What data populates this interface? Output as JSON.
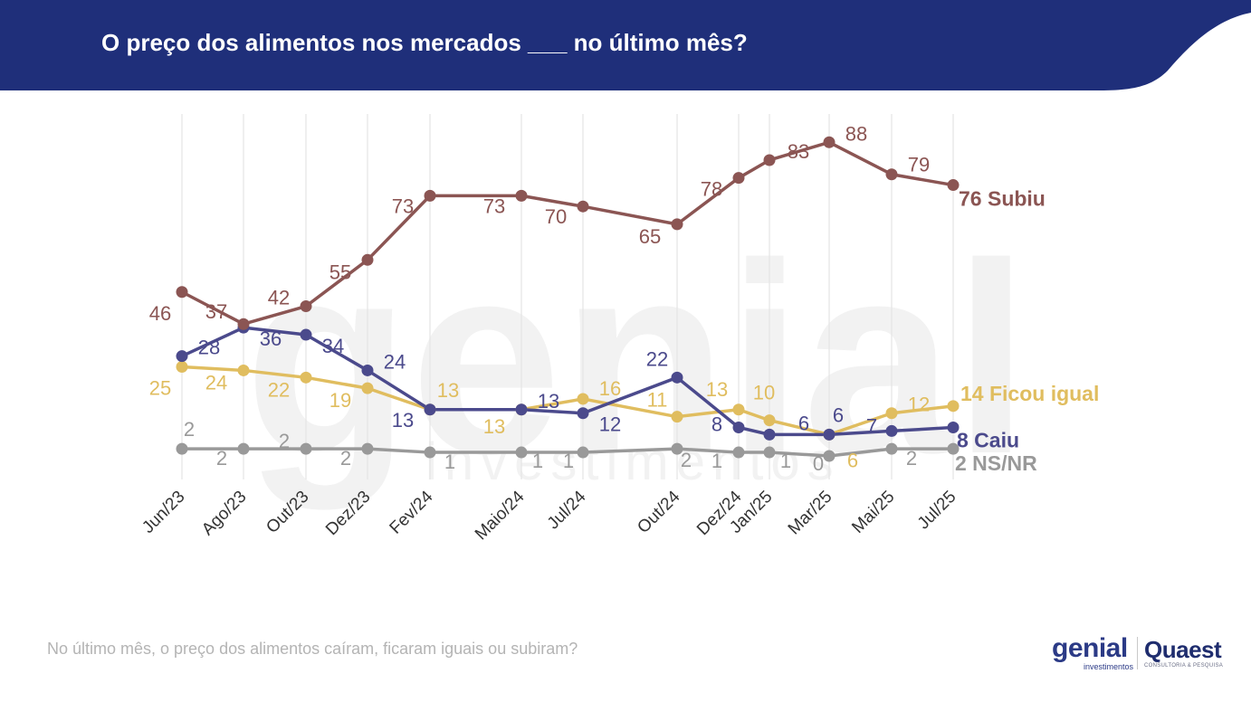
{
  "header": {
    "title": "O preço dos alimentos nos mercados ___ no último mês?",
    "background_color": "#1f2f7a"
  },
  "footer": {
    "question": "No último mês, o preço dos alimentos caíram, ficaram iguais ou subiram?"
  },
  "logos": {
    "genial_word": "genial",
    "genial_sub": "investimentos",
    "quaest_word": "Quaest",
    "quaest_sub": "CONSULTORIA & PESQUISA",
    "watermark_word": "genial",
    "watermark_sub": "investimentos"
  },
  "chart_data": {
    "type": "line",
    "title": "",
    "xlabel": "",
    "ylabel": "",
    "ylim": [
      0,
      100
    ],
    "grid": "vertical lines at each survey date",
    "x": [
      "Jun/23",
      "Ago/23",
      "Out/23",
      "Dez/23",
      "Fev/24",
      "Maio/24",
      "Jul/24",
      "Out/24",
      "Dez/24",
      "Jan/25",
      "Mar/25",
      "Mai/25",
      "Jul/25"
    ],
    "series": [
      {
        "name": "Subiu",
        "color": "#8b5553",
        "values": [
          46,
          37,
          42,
          55,
          73,
          73,
          70,
          65,
          78,
          83,
          88,
          79,
          76
        ],
        "end_label": "76 Subiu"
      },
      {
        "name": "Caiu",
        "color": "#4b4a8c",
        "values": [
          28,
          36,
          34,
          24,
          13,
          13,
          12,
          22,
          8,
          6,
          6,
          7,
          8
        ],
        "end_label": "8 Caiu"
      },
      {
        "name": "Ficou igual",
        "color": "#e0bd5f",
        "values": [
          25,
          24,
          22,
          19,
          13,
          13,
          16,
          11,
          13,
          10,
          6,
          12,
          14
        ],
        "end_label": "14 Ficou igual"
      },
      {
        "name": "NS/NR",
        "color": "#999999",
        "values": [
          2,
          2,
          2,
          2,
          1,
          1,
          1,
          2,
          1,
          1,
          0,
          2,
          2
        ],
        "end_label": "2 NS/NR"
      }
    ]
  }
}
